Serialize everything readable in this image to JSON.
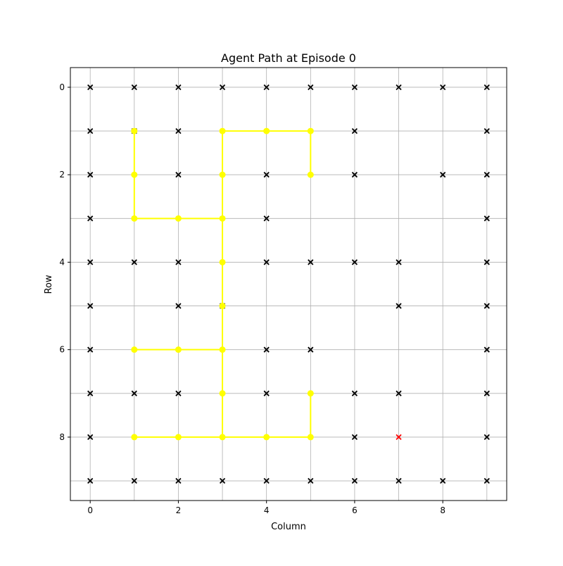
{
  "chart_data": {
    "type": "scatter",
    "title": "Agent Path at Episode 0",
    "xlabel": "Column",
    "ylabel": "Row",
    "xlim": [
      -0.45,
      9.45
    ],
    "ylim": [
      9.45,
      -0.45
    ],
    "y_inverted": true,
    "xticks": [
      0,
      2,
      4,
      6,
      8
    ],
    "yticks": [
      0,
      2,
      4,
      6,
      8
    ],
    "grid": true,
    "colors": {
      "obstacle": "#000000",
      "goal": "#ff0000",
      "path": "#ffff00"
    },
    "obstacles": [
      [
        0,
        0
      ],
      [
        1,
        0
      ],
      [
        2,
        0
      ],
      [
        3,
        0
      ],
      [
        4,
        0
      ],
      [
        5,
        0
      ],
      [
        6,
        0
      ],
      [
        7,
        0
      ],
      [
        8,
        0
      ],
      [
        9,
        0
      ],
      [
        0,
        1
      ],
      [
        1,
        1
      ],
      [
        2,
        1
      ],
      [
        6,
        1
      ],
      [
        9,
        1
      ],
      [
        0,
        2
      ],
      [
        2,
        2
      ],
      [
        4,
        2
      ],
      [
        6,
        2
      ],
      [
        8,
        2
      ],
      [
        9,
        2
      ],
      [
        0,
        3
      ],
      [
        4,
        3
      ],
      [
        9,
        3
      ],
      [
        0,
        4
      ],
      [
        1,
        4
      ],
      [
        2,
        4
      ],
      [
        4,
        4
      ],
      [
        5,
        4
      ],
      [
        6,
        4
      ],
      [
        7,
        4
      ],
      [
        9,
        4
      ],
      [
        0,
        5
      ],
      [
        2,
        5
      ],
      [
        3,
        5
      ],
      [
        7,
        5
      ],
      [
        9,
        5
      ],
      [
        0,
        6
      ],
      [
        4,
        6
      ],
      [
        5,
        6
      ],
      [
        9,
        6
      ],
      [
        0,
        7
      ],
      [
        1,
        7
      ],
      [
        2,
        7
      ],
      [
        4,
        7
      ],
      [
        6,
        7
      ],
      [
        7,
        7
      ],
      [
        9,
        7
      ],
      [
        0,
        8
      ],
      [
        6,
        8
      ],
      [
        9,
        8
      ],
      [
        0,
        9
      ],
      [
        1,
        9
      ],
      [
        2,
        9
      ],
      [
        3,
        9
      ],
      [
        4,
        9
      ],
      [
        5,
        9
      ],
      [
        6,
        9
      ],
      [
        7,
        9
      ],
      [
        8,
        9
      ],
      [
        9,
        9
      ]
    ],
    "goal": [
      [
        7,
        8
      ]
    ],
    "path": [
      [
        1,
        1
      ],
      [
        1,
        2
      ],
      [
        1,
        3
      ],
      [
        2,
        3
      ],
      [
        3,
        3
      ],
      [
        3,
        2
      ],
      [
        3,
        1
      ],
      [
        4,
        1
      ],
      [
        5,
        1
      ],
      [
        5,
        2
      ],
      [
        3,
        4
      ],
      [
        3,
        5
      ],
      [
        3,
        6
      ],
      [
        2,
        6
      ],
      [
        1,
        6
      ],
      [
        3,
        7
      ],
      [
        3,
        8
      ],
      [
        2,
        8
      ],
      [
        1,
        8
      ],
      [
        4,
        8
      ],
      [
        5,
        8
      ],
      [
        5,
        7
      ]
    ],
    "path_segments": [
      [
        [
          1,
          1
        ],
        [
          1,
          2
        ],
        [
          1,
          3
        ],
        [
          2,
          3
        ],
        [
          3,
          3
        ],
        [
          3,
          2
        ],
        [
          3,
          1
        ],
        [
          4,
          1
        ],
        [
          5,
          1
        ],
        [
          5,
          2
        ]
      ],
      [
        [
          3,
          3
        ],
        [
          3,
          4
        ],
        [
          3,
          5
        ],
        [
          3,
          6
        ],
        [
          3,
          7
        ],
        [
          3,
          8
        ]
      ],
      [
        [
          3,
          6
        ],
        [
          2,
          6
        ],
        [
          1,
          6
        ]
      ],
      [
        [
          1,
          8
        ],
        [
          2,
          8
        ],
        [
          3,
          8
        ],
        [
          4,
          8
        ],
        [
          5,
          8
        ],
        [
          5,
          7
        ]
      ]
    ]
  }
}
